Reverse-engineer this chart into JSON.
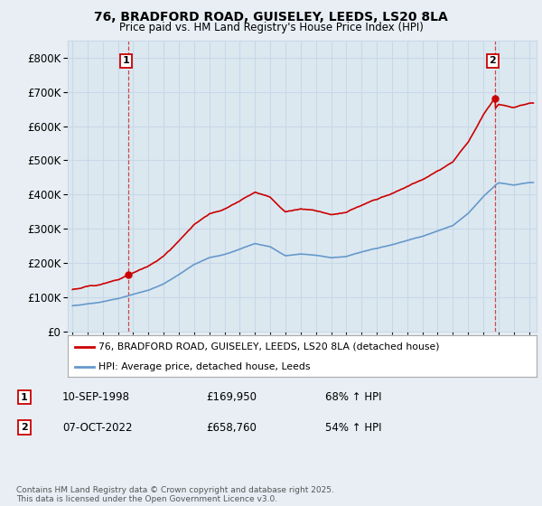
{
  "title": "76, BRADFORD ROAD, GUISELEY, LEEDS, LS20 8LA",
  "subtitle": "Price paid vs. HM Land Registry's House Price Index (HPI)",
  "property_label": "76, BRADFORD ROAD, GUISELEY, LEEDS, LS20 8LA (detached house)",
  "hpi_label": "HPI: Average price, detached house, Leeds",
  "sale1_date": "10-SEP-1998",
  "sale1_price": "£169,950",
  "sale1_hpi": "68% ↑ HPI",
  "sale2_date": "07-OCT-2022",
  "sale2_price": "£658,760",
  "sale2_hpi": "54% ↑ HPI",
  "copyright": "Contains HM Land Registry data © Crown copyright and database right 2025.\nThis data is licensed under the Open Government Licence v3.0.",
  "property_color": "#cc0000",
  "hpi_color": "#6699cc",
  "grid_color": "#c8d8e8",
  "background_color": "#e8eef4",
  "plot_background": "#dce8f0",
  "ylim": [
    0,
    850000
  ],
  "yticks": [
    0,
    100000,
    200000,
    300000,
    400000,
    500000,
    600000,
    700000,
    800000
  ],
  "sale1_year": 1998.69,
  "sale1_value": 169950,
  "sale2_year": 2022.77,
  "sale2_value": 658760,
  "xmin": 1995,
  "xmax": 2025.5
}
